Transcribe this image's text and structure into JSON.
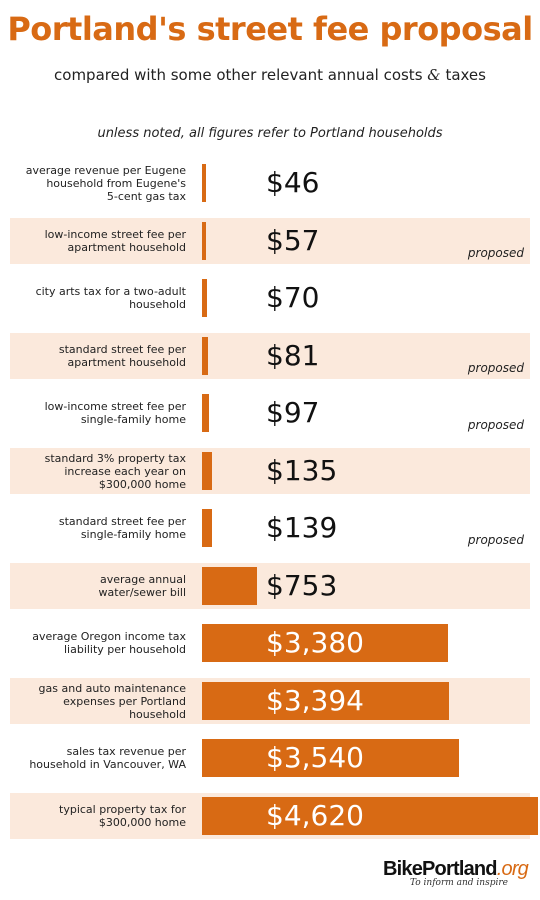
{
  "chart_data": {
    "type": "bar",
    "orientation": "horizontal",
    "title": "Portland's street fee proposal",
    "subtitle_prefix": "compared with some other relevant annual costs",
    "subtitle_amp": "&",
    "subtitle_suffix": "taxes",
    "note": "unless noted, all figures refer to Portland households",
    "bar_color": "#d86a14",
    "highlight_color": "#fbe9dc",
    "items": [
      {
        "label": [
          "average revenue per Eugene",
          "household from Eugene's",
          "5-cent gas tax"
        ],
        "value": 46,
        "display": "$46",
        "tag": ""
      },
      {
        "label": [
          "low-income street fee per",
          "apartment household"
        ],
        "value": 57,
        "display": "$57",
        "tag": "proposed"
      },
      {
        "label": [
          "city arts tax for a two-adult",
          "household"
        ],
        "value": 70,
        "display": "$70",
        "tag": ""
      },
      {
        "label": [
          "standard street fee per",
          "apartment household"
        ],
        "value": 81,
        "display": "$81",
        "tag": "proposed"
      },
      {
        "label": [
          "low-income street fee per",
          "single-family home"
        ],
        "value": 97,
        "display": "$97",
        "tag": "proposed"
      },
      {
        "label": [
          "standard 3% property tax",
          "increase each year on",
          "$300,000 home"
        ],
        "value": 135,
        "display": "$135",
        "tag": ""
      },
      {
        "label": [
          "standard street fee per",
          "single-family home"
        ],
        "value": 139,
        "display": "$139",
        "tag": "proposed"
      },
      {
        "label": [
          "average annual",
          "water/sewer bill"
        ],
        "value": 753,
        "display": "$753",
        "tag": ""
      },
      {
        "label": [
          "average Oregon income tax",
          "liability per household"
        ],
        "value": 3380,
        "display": "$3,380",
        "tag": ""
      },
      {
        "label": [
          "gas and auto maintenance",
          "expenses per Portland",
          "household"
        ],
        "value": 3394,
        "display": "$3,394",
        "tag": ""
      },
      {
        "label": [
          "sales tax revenue per",
          "household in Vancouver, WA"
        ],
        "value": 3540,
        "display": "$3,540",
        "tag": ""
      },
      {
        "label": [
          "typical property tax for",
          "$300,000 home"
        ],
        "value": 4620,
        "display": "$4,620",
        "tag": ""
      }
    ]
  },
  "logo": {
    "name": "BikePortland",
    "suffix": ".org",
    "tagline": "To inform and inspire"
  }
}
